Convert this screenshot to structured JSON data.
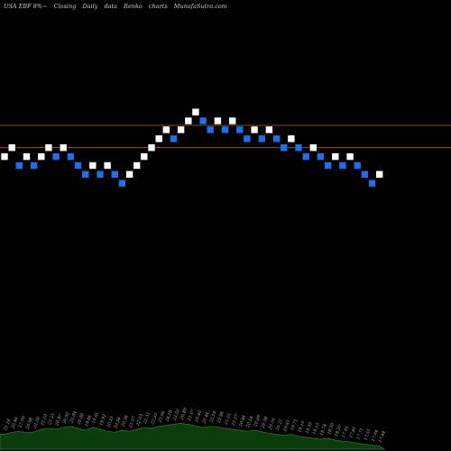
{
  "header": {
    "symbol": "USA EBF 8%~",
    "parts": [
      "Closing",
      "Daily",
      "data",
      "Renko",
      "charts",
      "MunafaSutra.com"
    ]
  },
  "colors": {
    "background": "#000000",
    "up_brick": "#ffffff",
    "down_brick": "#1e6fe8",
    "brick_border": "#000000",
    "reference_line": "#b8641c",
    "volume_fill": "#0a3d0a",
    "volume_line": "#2e7d2e",
    "volume_label": "#bbbbbb"
  },
  "chart_data": {
    "type": "renko",
    "reference_lines": [
      19.85,
      19.6
    ],
    "y_domain": [
      16.5,
      20.7
    ],
    "bricks": [
      {
        "value": 19.5,
        "dir": "up"
      },
      {
        "value": 19.6,
        "dir": "up"
      },
      {
        "value": 19.4,
        "dir": "down"
      },
      {
        "value": 19.5,
        "dir": "up"
      },
      {
        "value": 19.4,
        "dir": "down"
      },
      {
        "value": 19.5,
        "dir": "up"
      },
      {
        "value": 19.6,
        "dir": "up"
      },
      {
        "value": 19.5,
        "dir": "down"
      },
      {
        "value": 19.6,
        "dir": "up"
      },
      {
        "value": 19.5,
        "dir": "down"
      },
      {
        "value": 19.4,
        "dir": "down"
      },
      {
        "value": 19.3,
        "dir": "down"
      },
      {
        "value": 19.4,
        "dir": "up"
      },
      {
        "value": 19.3,
        "dir": "down"
      },
      {
        "value": 19.4,
        "dir": "up"
      },
      {
        "value": 19.3,
        "dir": "down"
      },
      {
        "value": 19.2,
        "dir": "down"
      },
      {
        "value": 19.3,
        "dir": "up"
      },
      {
        "value": 19.4,
        "dir": "up"
      },
      {
        "value": 19.5,
        "dir": "up"
      },
      {
        "value": 19.6,
        "dir": "up"
      },
      {
        "value": 19.7,
        "dir": "up"
      },
      {
        "value": 19.8,
        "dir": "up"
      },
      {
        "value": 19.7,
        "dir": "down"
      },
      {
        "value": 19.8,
        "dir": "up"
      },
      {
        "value": 19.9,
        "dir": "up"
      },
      {
        "value": 20.0,
        "dir": "up"
      },
      {
        "value": 19.9,
        "dir": "down"
      },
      {
        "value": 19.8,
        "dir": "down"
      },
      {
        "value": 19.9,
        "dir": "up"
      },
      {
        "value": 19.8,
        "dir": "down"
      },
      {
        "value": 19.9,
        "dir": "up"
      },
      {
        "value": 19.8,
        "dir": "down"
      },
      {
        "value": 19.7,
        "dir": "down"
      },
      {
        "value": 19.8,
        "dir": "up"
      },
      {
        "value": 19.7,
        "dir": "down"
      },
      {
        "value": 19.8,
        "dir": "up"
      },
      {
        "value": 19.7,
        "dir": "down"
      },
      {
        "value": 19.6,
        "dir": "down"
      },
      {
        "value": 19.7,
        "dir": "up"
      },
      {
        "value": 19.6,
        "dir": "down"
      },
      {
        "value": 19.5,
        "dir": "down"
      },
      {
        "value": 19.6,
        "dir": "up"
      },
      {
        "value": 19.5,
        "dir": "down"
      },
      {
        "value": 19.4,
        "dir": "down"
      },
      {
        "value": 19.5,
        "dir": "up"
      },
      {
        "value": 19.4,
        "dir": "down"
      },
      {
        "value": 19.5,
        "dir": "up"
      },
      {
        "value": 19.4,
        "dir": "down"
      },
      {
        "value": 19.3,
        "dir": "down"
      },
      {
        "value": 19.2,
        "dir": "down"
      },
      {
        "value": 19.3,
        "dir": "up"
      }
    ],
    "volume_profile": [
      0.3,
      0.34,
      0.36,
      0.33,
      0.35,
      0.4,
      0.42,
      0.4,
      0.44,
      0.46,
      0.42,
      0.38,
      0.44,
      0.4,
      0.36,
      0.34,
      0.38,
      0.36,
      0.4,
      0.44,
      0.42,
      0.46,
      0.48,
      0.5,
      0.52,
      0.5,
      0.47,
      0.44,
      0.46,
      0.45,
      0.42,
      0.4,
      0.38,
      0.36,
      0.38,
      0.35,
      0.32,
      0.3,
      0.28,
      0.3,
      0.26,
      0.24,
      0.22,
      0.2,
      0.22,
      0.18,
      0.16,
      0.15,
      0.12,
      0.1,
      0.08,
      0.06
    ],
    "volume_labels": [
      "21.18",
      "20.84",
      "21.00",
      "20.98",
      "21.06",
      "21.10",
      "21.21",
      "20.97",
      "20.92",
      "20.84",
      "20.80",
      "19.86",
      "19.91",
      "19.92",
      "20.35",
      "20.54",
      "20.36",
      "21.07",
      "22.03",
      "22.51",
      "22.35",
      "23.06",
      "24.18",
      "23.50",
      "20.89",
      "21.07",
      "20.40",
      "20.44",
      "20.18",
      "20.38",
      "21.01",
      "21.07",
      "20.46",
      "20.24",
      "20.69",
      "20.38",
      "20.16",
      "20.21",
      "19.65",
      "19.71",
      "19.10",
      "19.35",
      "19.13",
      "18.74",
      "18.50",
      "18.20",
      "17.91",
      "17.81",
      "17.71",
      "17.55",
      "17.64",
      "17.44"
    ]
  }
}
